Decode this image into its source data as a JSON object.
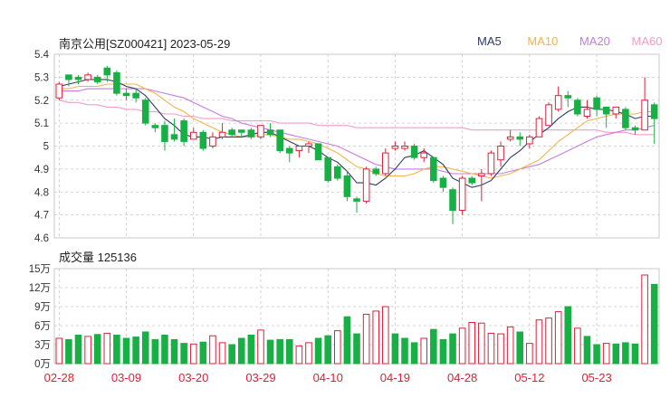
{
  "header": {
    "title": "南京公用[SZ000421] 2023-05-29",
    "ma_labels": [
      {
        "label": "MA5",
        "color": "#2f3a66"
      },
      {
        "label": "MA10",
        "color": "#f2b44a"
      },
      {
        "label": "MA20",
        "color": "#c77be0"
      },
      {
        "label": "MA60",
        "color": "#f39bc9"
      }
    ]
  },
  "volume_header": {
    "label": "成交量 125136"
  },
  "colors": {
    "up": "#e0203a",
    "down": "#18b045",
    "grid": "#c8c8c8",
    "axis_text": "#333333",
    "date_text": "#e0203a"
  },
  "chart_data": [
    {
      "type": "candlestick",
      "title": "南京公用[SZ000421] 2023-05-29",
      "ylim": [
        4.6,
        5.4
      ],
      "yticks": [
        "5.4",
        "5.3",
        "5.2",
        "5.1",
        "5",
        "4.9",
        "4.8",
        "4.7",
        "4.6"
      ],
      "ytick_values": [
        5.4,
        5.3,
        5.2,
        5.1,
        5.0,
        4.9,
        4.8,
        4.7,
        4.6
      ],
      "xticks": [
        "02-28",
        "03-09",
        "03-20",
        "03-29",
        "04-10",
        "04-19",
        "04-28",
        "05-12",
        "05-23"
      ],
      "xtick_index": [
        0,
        7,
        14,
        21,
        28,
        35,
        42,
        49,
        56
      ],
      "candles": [
        [
          5.21,
          5.27,
          5.28,
          5.2
        ],
        [
          5.31,
          5.29,
          5.31,
          5.26
        ],
        [
          5.3,
          5.29,
          5.31,
          5.27
        ],
        [
          5.29,
          5.31,
          5.32,
          5.28
        ],
        [
          5.3,
          5.28,
          5.31,
          5.27
        ],
        [
          5.34,
          5.31,
          5.35,
          5.28
        ],
        [
          5.32,
          5.23,
          5.33,
          5.22
        ],
        [
          5.23,
          5.22,
          5.25,
          5.2
        ],
        [
          5.23,
          5.21,
          5.25,
          5.19
        ],
        [
          5.2,
          5.1,
          5.21,
          5.09
        ],
        [
          5.09,
          5.08,
          5.1,
          5.06
        ],
        [
          5.09,
          5.02,
          5.11,
          4.98
        ],
        [
          5.05,
          5.03,
          5.12,
          5.02
        ],
        [
          5.11,
          5.02,
          5.12,
          5.0
        ],
        [
          5.03,
          5.06,
          5.08,
          5.03
        ],
        [
          5.06,
          4.99,
          5.07,
          4.98
        ],
        [
          5.0,
          5.04,
          5.06,
          4.99
        ],
        [
          5.04,
          5.06,
          5.1,
          5.03
        ],
        [
          5.07,
          5.05,
          5.08,
          5.04
        ],
        [
          5.07,
          5.06,
          5.07,
          5.04
        ],
        [
          5.07,
          5.04,
          5.08,
          5.03
        ],
        [
          5.04,
          5.09,
          5.09,
          5.03
        ],
        [
          5.07,
          5.05,
          5.1,
          5.04
        ],
        [
          5.07,
          4.98,
          5.07,
          4.97
        ],
        [
          4.99,
          4.97,
          5.0,
          4.93
        ],
        [
          4.98,
          5.0,
          5.0,
          4.95
        ],
        [
          5.0,
          5.01,
          5.02,
          4.97
        ],
        [
          5.01,
          4.94,
          5.01,
          4.94
        ],
        [
          4.95,
          4.85,
          4.95,
          4.84
        ],
        [
          4.91,
          4.86,
          4.92,
          4.85
        ],
        [
          4.87,
          4.78,
          4.89,
          4.76
        ],
        [
          4.77,
          4.76,
          4.78,
          4.71
        ],
        [
          4.76,
          4.9,
          4.91,
          4.75
        ],
        [
          4.9,
          4.88,
          4.91,
          4.87
        ],
        [
          4.88,
          4.97,
          4.99,
          4.87
        ],
        [
          4.99,
          5.0,
          5.02,
          4.98
        ],
        [
          4.99,
          5.0,
          5.02,
          4.98
        ],
        [
          5.0,
          4.95,
          5.01,
          4.94
        ],
        [
          4.95,
          4.97,
          4.99,
          4.93
        ],
        [
          4.95,
          4.85,
          4.95,
          4.84
        ],
        [
          4.86,
          4.82,
          4.87,
          4.8
        ],
        [
          4.81,
          4.72,
          4.82,
          4.66
        ],
        [
          4.72,
          4.86,
          4.87,
          4.7
        ],
        [
          4.86,
          4.84,
          4.87,
          4.83
        ],
        [
          4.87,
          4.88,
          4.9,
          4.76
        ],
        [
          4.88,
          4.97,
          4.98,
          4.87
        ],
        [
          4.94,
          5.0,
          5.02,
          4.91
        ],
        [
          5.03,
          5.04,
          5.07,
          5.02
        ],
        [
          5.04,
          5.03,
          5.06,
          5.0
        ],
        [
          5.01,
          5.04,
          5.05,
          4.99
        ],
        [
          5.04,
          5.12,
          5.13,
          5.04
        ],
        [
          5.09,
          5.18,
          5.19,
          5.09
        ],
        [
          5.16,
          5.22,
          5.26,
          5.15
        ],
        [
          5.22,
          5.21,
          5.24,
          5.17
        ],
        [
          5.2,
          5.14,
          5.21,
          5.13
        ],
        [
          5.13,
          5.16,
          5.2,
          5.12
        ],
        [
          5.21,
          5.16,
          5.22,
          5.13
        ],
        [
          5.17,
          5.14,
          5.17,
          5.08
        ],
        [
          5.14,
          5.17,
          5.17,
          5.12
        ],
        [
          5.16,
          5.08,
          5.17,
          5.07
        ],
        [
          5.08,
          5.07,
          5.09,
          5.05
        ],
        [
          5.07,
          5.2,
          5.3,
          5.07
        ],
        [
          5.18,
          5.12,
          5.19,
          5.01
        ]
      ],
      "ma": {
        "MA5": [
          5.26,
          5.27,
          5.28,
          5.29,
          5.29,
          5.29,
          5.28,
          5.26,
          5.25,
          5.22,
          5.17,
          5.12,
          5.09,
          5.05,
          5.04,
          5.04,
          5.03,
          5.04,
          5.04,
          5.04,
          5.05,
          5.06,
          5.06,
          5.04,
          5.02,
          5.0,
          5.0,
          4.98,
          4.95,
          4.93,
          4.89,
          4.84,
          4.84,
          4.83,
          4.86,
          4.9,
          4.95,
          4.96,
          4.98,
          4.95,
          4.92,
          4.86,
          4.84,
          4.82,
          4.83,
          4.85,
          4.9,
          4.95,
          4.98,
          5.02,
          5.05,
          5.08,
          5.12,
          5.15,
          5.17,
          5.17,
          5.16,
          5.16,
          5.15,
          5.14,
          5.12,
          5.13,
          5.13
        ],
        "MA10": [
          5.25,
          5.25,
          5.26,
          5.26,
          5.26,
          5.27,
          5.27,
          5.27,
          5.27,
          5.25,
          5.23,
          5.2,
          5.17,
          5.15,
          5.12,
          5.1,
          5.08,
          5.06,
          5.05,
          5.04,
          5.04,
          5.05,
          5.05,
          5.04,
          5.03,
          5.03,
          5.02,
          5.01,
          4.99,
          4.97,
          4.94,
          4.91,
          4.9,
          4.88,
          4.87,
          4.87,
          4.87,
          4.88,
          4.9,
          4.91,
          4.91,
          4.9,
          4.89,
          4.88,
          4.87,
          4.86,
          4.87,
          4.88,
          4.9,
          4.92,
          4.94,
          4.98,
          5.02,
          5.05,
          5.08,
          5.11,
          5.12,
          5.13,
          5.14,
          5.14,
          5.14,
          5.15,
          5.15
        ],
        "MA20": [
          5.24,
          5.24,
          5.24,
          5.25,
          5.25,
          5.25,
          5.25,
          5.25,
          5.25,
          5.25,
          5.24,
          5.23,
          5.22,
          5.21,
          5.19,
          5.17,
          5.15,
          5.13,
          5.12,
          5.1,
          5.09,
          5.08,
          5.07,
          5.06,
          5.05,
          5.04,
          5.03,
          5.02,
          5.01,
          5.0,
          4.98,
          4.96,
          4.94,
          4.92,
          4.91,
          4.9,
          4.9,
          4.9,
          4.9,
          4.9,
          4.89,
          4.88,
          4.88,
          4.88,
          4.88,
          4.88,
          4.88,
          4.89,
          4.9,
          4.91,
          4.92,
          4.94,
          4.96,
          4.98,
          5.0,
          5.02,
          5.04,
          5.05,
          5.06,
          5.07,
          5.07,
          5.08,
          5.09
        ],
        "MA60": [
          5.2,
          5.19,
          5.19,
          5.18,
          5.18,
          5.17,
          5.17,
          5.16,
          5.16,
          5.15,
          5.15,
          5.14,
          5.14,
          5.13,
          5.13,
          5.12,
          5.12,
          5.12,
          5.11,
          5.11,
          5.11,
          5.11,
          5.11,
          5.1,
          5.1,
          5.1,
          5.1,
          5.09,
          5.09,
          5.09,
          5.09,
          5.08,
          5.08,
          5.08,
          5.08,
          5.08,
          5.08,
          5.08,
          5.08,
          5.08,
          5.08,
          5.08,
          5.08,
          5.07,
          5.07,
          5.07,
          5.07,
          5.07,
          5.07,
          5.07,
          5.07,
          5.07,
          5.07,
          5.07,
          5.07,
          5.07,
          5.07,
          5.06,
          5.06,
          5.06,
          5.05,
          5.05,
          5.05
        ]
      }
    },
    {
      "type": "bar",
      "title": "成交量 125136",
      "ylim": [
        0,
        150000
      ],
      "yticks": [
        "15万",
        "12万",
        "9万",
        "6万",
        "3万",
        "0万"
      ],
      "ytick_values": [
        150000,
        120000,
        90000,
        60000,
        30000,
        0
      ],
      "volumes": [
        40000,
        38000,
        45000,
        43000,
        46000,
        48000,
        45000,
        40000,
        42000,
        50000,
        38000,
        45000,
        38000,
        32000,
        31000,
        34000,
        44000,
        33000,
        30000,
        40000,
        45000,
        53000,
        37000,
        38000,
        38000,
        28000,
        33000,
        40000,
        44000,
        52000,
        74000,
        47000,
        78000,
        83000,
        90000,
        47000,
        40000,
        33000,
        40000,
        54000,
        38000,
        47000,
        56000,
        65000,
        64000,
        48000,
        47000,
        58000,
        50000,
        32000,
        69000,
        72000,
        82000,
        90000,
        56000,
        43000,
        30000,
        32000,
        31000,
        33000,
        31000,
        140000,
        125136
      ],
      "up": [
        true,
        false,
        false,
        true,
        false,
        true,
        false,
        false,
        false,
        false,
        false,
        false,
        false,
        false,
        true,
        false,
        true,
        true,
        false,
        false,
        false,
        true,
        false,
        false,
        false,
        true,
        true,
        false,
        false,
        true,
        false,
        false,
        true,
        true,
        true,
        false,
        false,
        false,
        true,
        false,
        false,
        false,
        true,
        true,
        true,
        true,
        true,
        true,
        false,
        true,
        true,
        true,
        true,
        false,
        true,
        false,
        false,
        true,
        false,
        false,
        false,
        true,
        false
      ]
    }
  ]
}
